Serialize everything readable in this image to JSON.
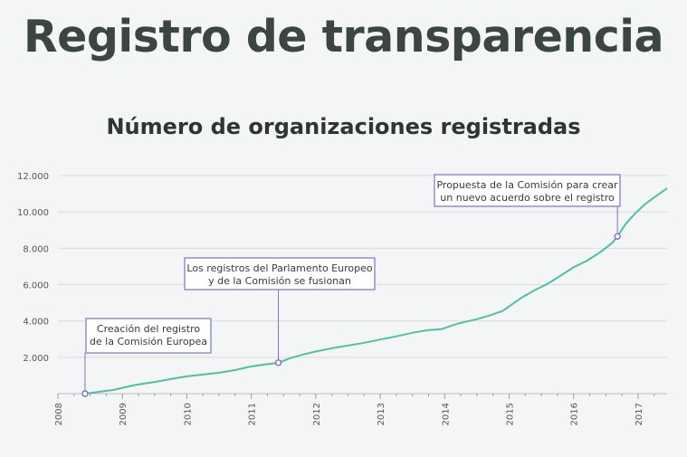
{
  "page": {
    "title": "Registro de transparencia"
  },
  "chart_data": {
    "type": "line",
    "title": "Número de organizaciones registradas",
    "xlabel": "",
    "ylabel": "",
    "xlim": [
      2008.0,
      2017.45
    ],
    "ylim": [
      0,
      12000
    ],
    "grid": true,
    "colors": {
      "line": "#4ec29f",
      "annotation": "#7b72c8",
      "grid": "#dcdcdc"
    },
    "x_ticks": [
      {
        "value": 2008,
        "label": "2008"
      },
      {
        "value": 2009,
        "label": "2009"
      },
      {
        "value": 2010,
        "label": "2010"
      },
      {
        "value": 2011,
        "label": "2011"
      },
      {
        "value": 2012,
        "label": "2012"
      },
      {
        "value": 2013,
        "label": "2013"
      },
      {
        "value": 2014,
        "label": "2014"
      },
      {
        "value": 2015,
        "label": "2015"
      },
      {
        "value": 2016,
        "label": "2016"
      },
      {
        "value": 2017,
        "label": "2017"
      }
    ],
    "y_ticks": [
      {
        "value": 2000,
        "label": "2.000"
      },
      {
        "value": 4000,
        "label": "4.000"
      },
      {
        "value": 6000,
        "label": "6.000"
      },
      {
        "value": 8000,
        "label": "8.000"
      },
      {
        "value": 10000,
        "label": "10.000"
      },
      {
        "value": 12000,
        "label": "12.000"
      }
    ],
    "series": [
      {
        "x": [
          2008.42,
          2008.6,
          2008.85,
          2009.0,
          2009.2,
          2009.5,
          2009.75,
          2010.0,
          2010.25,
          2010.5,
          2010.75,
          2011.0,
          2011.2,
          2011.42,
          2011.6,
          2011.8,
          2012.0,
          2012.25,
          2012.5,
          2012.75,
          2013.0,
          2013.25,
          2013.5,
          2013.75,
          2013.95,
          2014.2,
          2014.5,
          2014.7,
          2014.9,
          2015.0,
          2015.2,
          2015.4,
          2015.6,
          2015.8,
          2016.0,
          2016.2,
          2016.4,
          2016.6,
          2016.68,
          2016.8,
          2016.95,
          2017.1,
          2017.25,
          2017.45
        ],
        "values": [
          0,
          80,
          200,
          320,
          480,
          640,
          800,
          950,
          1050,
          1150,
          1300,
          1500,
          1600,
          1700,
          1950,
          2150,
          2320,
          2500,
          2650,
          2800,
          2980,
          3150,
          3350,
          3500,
          3550,
          3850,
          4100,
          4300,
          4550,
          4800,
          5300,
          5700,
          6050,
          6500,
          6950,
          7300,
          7750,
          8300,
          8650,
          9300,
          9900,
          10400,
          10800,
          11300
        ]
      }
    ],
    "annotations": [
      {
        "x": 2008.42,
        "y": 0,
        "lines": [
          "Creación del registro",
          "de la Comisión Europea"
        ]
      },
      {
        "x": 2011.42,
        "y": 1700,
        "lines": [
          "Los registros del Parlamento Europeo",
          "y de la Comisión se fusionan"
        ]
      },
      {
        "x": 2016.68,
        "y": 8650,
        "lines": [
          "Propuesta de la Comisión para crear",
          "un nuevo acuerdo sobre el registro"
        ]
      }
    ]
  }
}
